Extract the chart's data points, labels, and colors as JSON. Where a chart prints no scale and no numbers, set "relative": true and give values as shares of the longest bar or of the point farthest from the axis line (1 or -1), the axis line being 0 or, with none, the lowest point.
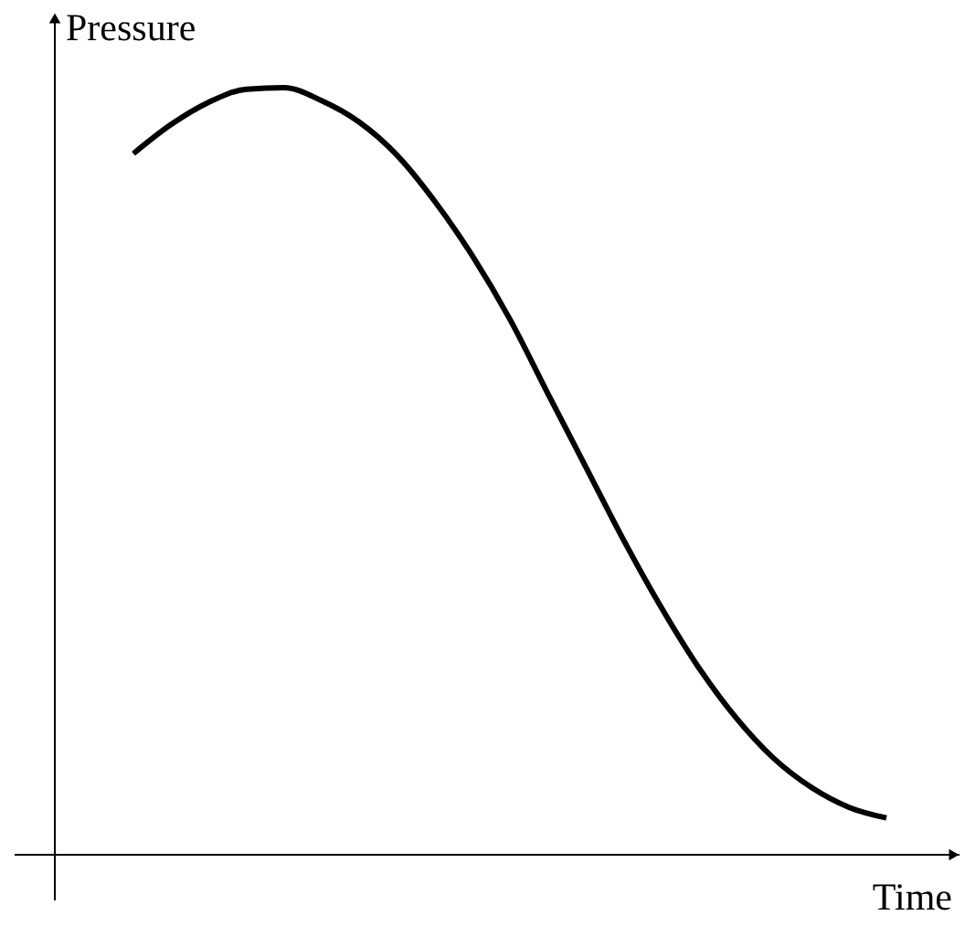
{
  "chart_data": {
    "type": "line",
    "relative": true,
    "xlabel": "Time",
    "ylabel": "Pressure",
    "categories": [
      null,
      null,
      null,
      null,
      null,
      null,
      null,
      null,
      null,
      null,
      null,
      null,
      null,
      null,
      null,
      null,
      null,
      null,
      null,
      null,
      null
    ],
    "series": [
      {
        "color": "#000000",
        "values": [
          0.914,
          0.952,
          0.981,
          0.998,
          1.0,
          0.983,
          0.955,
          0.912,
          0.852,
          0.781,
          0.698,
          0.602,
          0.507,
          0.412,
          0.324,
          0.245,
          0.179,
          0.126,
          0.088,
          0.062,
          0.048
        ]
      }
    ]
  }
}
